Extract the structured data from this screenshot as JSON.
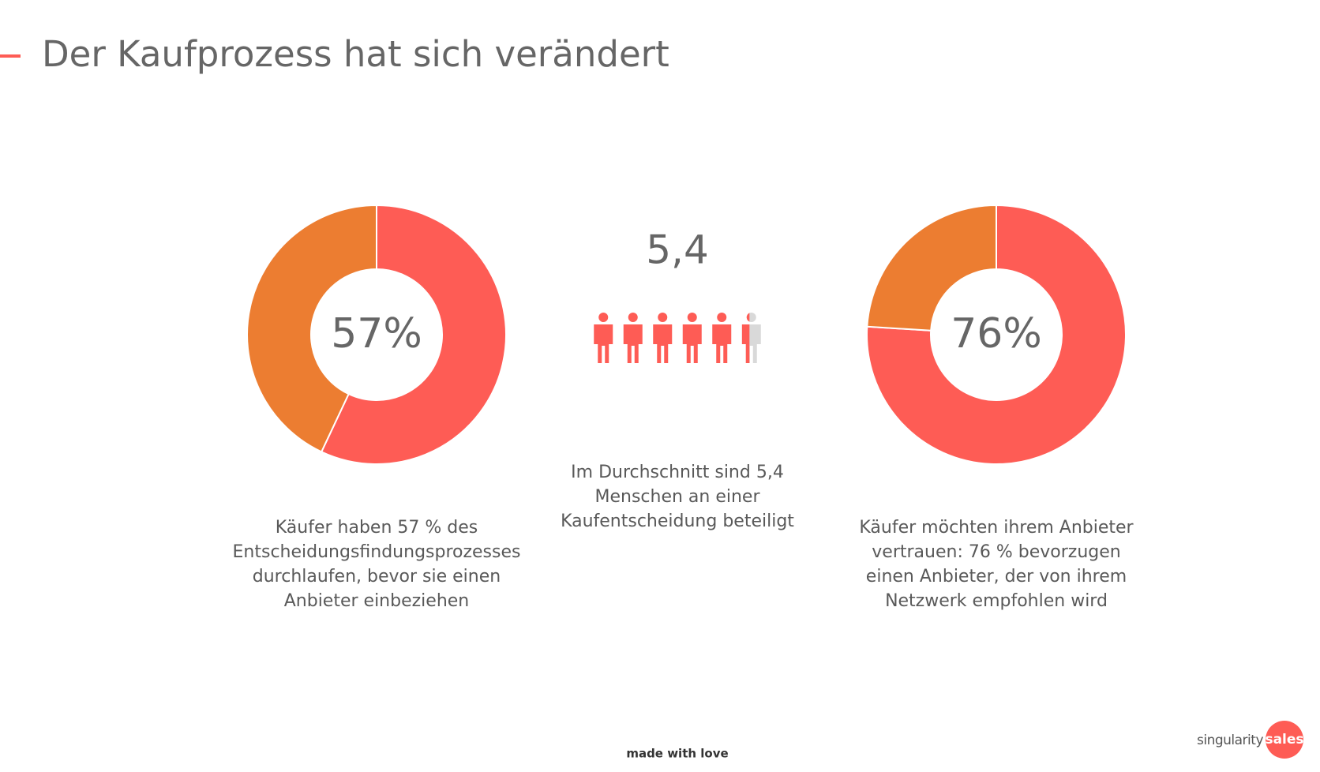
{
  "title": "Der Kaufprozess hat sich verändert",
  "chart_data": [
    {
      "type": "donut",
      "values": [
        57,
        43
      ],
      "colors": [
        "#fe5c55",
        "#ec7d31"
      ],
      "center_label": "57%",
      "caption": [
        "Käufer haben 57 % des",
        "Entscheidungsfindungsprozesses",
        "durchlaufen, bevor sie einen",
        "Anbieter einbeziehen"
      ]
    },
    {
      "type": "pictogram",
      "value": 5.4,
      "value_label": "5,4",
      "color": "#fe5c55",
      "empty_color": "#d9d9d9",
      "caption": [
        "Im Durchschnitt sind 5,4",
        "Menschen an einer",
        "Kaufentscheidung beteiligt"
      ]
    },
    {
      "type": "donut",
      "values": [
        76,
        24
      ],
      "colors": [
        "#fe5c55",
        "#ec7d31"
      ],
      "center_label": "76%",
      "caption": [
        "Käufer möchten ihrem Anbieter",
        "vertrauen: 76 % bevorzugen",
        "einen Anbieter, der von ihrem",
        "Netzwerk empfohlen wird"
      ]
    }
  ],
  "footer": "made with love",
  "logo": {
    "left": "singularity",
    "right": "sales"
  }
}
